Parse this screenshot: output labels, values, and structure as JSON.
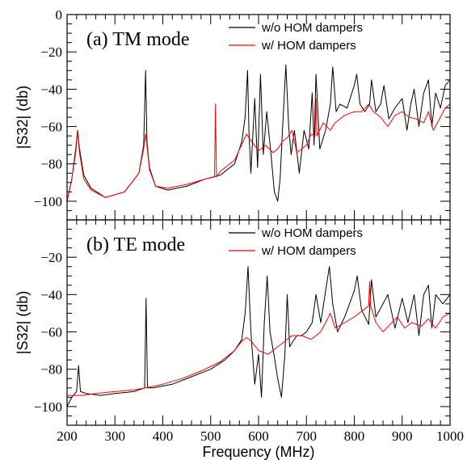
{
  "chart_data": [
    {
      "type": "line",
      "title": "(a) TM mode",
      "ylabel": "|S32| (db)",
      "xlabel": "",
      "xlim": [
        200,
        1000
      ],
      "ylim": [
        -110,
        0
      ],
      "yticks": [
        -100,
        -80,
        -60,
        -40,
        -20,
        0
      ],
      "ytick_labels": [
        "−100",
        "−80",
        "−60",
        "−40",
        "−20",
        "0"
      ],
      "xticks": [
        200,
        300,
        400,
        500,
        600,
        700,
        800,
        900,
        1000
      ],
      "legend_position": "top-right",
      "series": [
        {
          "name": "w/o HOM dampers",
          "color": "#000000",
          "x": [
            200,
            210,
            218,
            222,
            226,
            235,
            250,
            280,
            320,
            350,
            360,
            364,
            367,
            372,
            385,
            410,
            450,
            490,
            520,
            550,
            565,
            572,
            577,
            580,
            584,
            592,
            598,
            604,
            610,
            617,
            625,
            633,
            640,
            645,
            650,
            657,
            663,
            668,
            675,
            685,
            695,
            705,
            712,
            716,
            720,
            728,
            740,
            750,
            755,
            762,
            770,
            785,
            800,
            805,
            812,
            822,
            832,
            836,
            845,
            855,
            862,
            872,
            885,
            900,
            910,
            918,
            925,
            935,
            945,
            955,
            962,
            970,
            980,
            990,
            1000
          ],
          "values": [
            -100,
            -88,
            -72,
            -62,
            -72,
            -86,
            -93,
            -98,
            -95,
            -85,
            -70,
            -30,
            -68,
            -82,
            -92,
            -94,
            -92,
            -88,
            -86,
            -80,
            -68,
            -55,
            -30,
            -62,
            -85,
            -45,
            -82,
            -32,
            -75,
            -52,
            -72,
            -95,
            -100,
            -88,
            -62,
            -27,
            -60,
            -75,
            -62,
            -85,
            -62,
            -72,
            -42,
            -70,
            -32,
            -72,
            -62,
            -48,
            -28,
            -52,
            -48,
            -50,
            -38,
            -32,
            -48,
            -52,
            -48,
            -35,
            -52,
            -48,
            -38,
            -56,
            -50,
            -45,
            -62,
            -48,
            -40,
            -60,
            -42,
            -35,
            -60,
            -42,
            -50,
            -38,
            -35
          ]
        },
        {
          "name": "w/ HOM dampers",
          "color": "#ff0000",
          "x": [
            200,
            210,
            218,
            222,
            226,
            235,
            250,
            280,
            320,
            350,
            360,
            364,
            367,
            372,
            385,
            410,
            450,
            490,
            508,
            510,
            512,
            520,
            550,
            575,
            580,
            600,
            615,
            630,
            640,
            650,
            660,
            670,
            680,
            700,
            710,
            718,
            720,
            722,
            735,
            750,
            760,
            780,
            800,
            815,
            830,
            840,
            855,
            870,
            885,
            900,
            915,
            930,
            945,
            955,
            965,
            980,
            990,
            1000
          ],
          "values": [
            -100,
            -88,
            -74,
            -63,
            -74,
            -88,
            -94,
            -98,
            -95,
            -85,
            -72,
            -64,
            -70,
            -83,
            -92,
            -93,
            -91,
            -88,
            -87,
            -48,
            -87,
            -84,
            -78,
            -64,
            -66,
            -73,
            -70,
            -74,
            -72,
            -68,
            -66,
            -62,
            -74,
            -70,
            -64,
            -65,
            -45,
            -65,
            -58,
            -62,
            -58,
            -54,
            -52,
            -52,
            -48,
            -52,
            -55,
            -60,
            -54,
            -52,
            -55,
            -56,
            -58,
            -52,
            -62,
            -55,
            -50,
            -48
          ]
        }
      ]
    },
    {
      "type": "line",
      "title": "(b) TE mode",
      "ylabel": "|S32| (db)",
      "xlabel": "Frequency (MHz)",
      "xlim": [
        200,
        1000
      ],
      "ylim": [
        -110,
        0
      ],
      "yticks": [
        -100,
        -80,
        -60,
        -40,
        -20
      ],
      "ytick_labels": [
        "−100",
        "−80",
        "−60",
        "−40",
        "−20"
      ],
      "xticks": [
        200,
        300,
        400,
        500,
        600,
        700,
        800,
        900,
        1000
      ],
      "xtick_labels": [
        "200",
        "300",
        "400",
        "500",
        "600",
        "700",
        "800",
        "900",
        "1000"
      ],
      "legend_position": "top-right",
      "series": [
        {
          "name": "w/o HOM dampers",
          "color": "#000000",
          "x": [
            200,
            210,
            220,
            224,
            228,
            240,
            270,
            300,
            340,
            362,
            365,
            368,
            380,
            420,
            460,
            500,
            530,
            550,
            565,
            572,
            578,
            584,
            592,
            600,
            606,
            612,
            618,
            624,
            632,
            640,
            648,
            655,
            660,
            665,
            672,
            680,
            690,
            700,
            712,
            720,
            730,
            742,
            748,
            755,
            765,
            780,
            800,
            806,
            815,
            830,
            836,
            845,
            860,
            870,
            885,
            900,
            912,
            925,
            935,
            945,
            955,
            962,
            970,
            985,
            1000
          ],
          "values": [
            -100,
            -95,
            -92,
            -78,
            -92,
            -93,
            -94,
            -93,
            -92,
            -90,
            -42,
            -90,
            -90,
            -88,
            -84,
            -80,
            -75,
            -70,
            -64,
            -50,
            -25,
            -60,
            -88,
            -72,
            -95,
            -55,
            -30,
            -60,
            -72,
            -85,
            -95,
            -72,
            -40,
            -68,
            -65,
            -62,
            -62,
            -60,
            -55,
            -40,
            -55,
            -35,
            -25,
            -45,
            -60,
            -52,
            -38,
            -30,
            -48,
            -56,
            -32,
            -52,
            -45,
            -40,
            -58,
            -42,
            -55,
            -40,
            -62,
            -40,
            -35,
            -58,
            -40,
            -45,
            -40
          ]
        },
        {
          "name": "w/ HOM dampers",
          "color": "#ff0000",
          "x": [
            200,
            230,
            260,
            300,
            340,
            365,
            400,
            440,
            480,
            520,
            550,
            565,
            575,
            585,
            600,
            620,
            640,
            655,
            670,
            690,
            710,
            730,
            750,
            760,
            780,
            800,
            820,
            830,
            832,
            834,
            845,
            860,
            875,
            890,
            905,
            920,
            940,
            955,
            970,
            985,
            1000
          ],
          "values": [
            -94,
            -94,
            -93,
            -92,
            -91,
            -90,
            -88,
            -85,
            -81,
            -76,
            -70,
            -65,
            -63,
            -65,
            -70,
            -72,
            -68,
            -65,
            -62,
            -62,
            -64,
            -60,
            -50,
            -58,
            -55,
            -52,
            -48,
            -46,
            -33,
            -46,
            -55,
            -60,
            -56,
            -52,
            -58,
            -55,
            -57,
            -53,
            -58,
            -52,
            -50
          ]
        }
      ]
    }
  ]
}
